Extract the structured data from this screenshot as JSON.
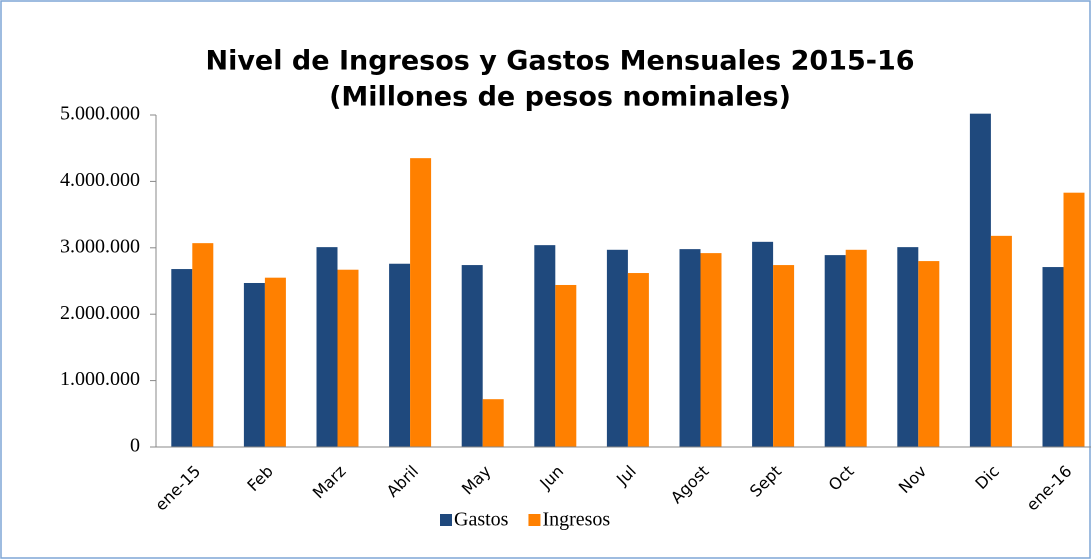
{
  "chart_data": {
    "type": "bar",
    "title": "Nivel de Ingresos y Gastos Mensuales 2015-16",
    "subtitle": "(Millones de pesos nominales)",
    "categories": [
      "ene-15",
      "Feb",
      "Marz",
      "Abril",
      "May",
      "Jun",
      "Jul",
      "Agost",
      "Sept",
      "Oct",
      "Nov",
      "Dic",
      "ene-16"
    ],
    "series": [
      {
        "name": "Gastos",
        "color": "#1f497d",
        "values": [
          2680000,
          2470000,
          3010000,
          2760000,
          2740000,
          3040000,
          2970000,
          2980000,
          3090000,
          2890000,
          3010000,
          5020000,
          2710000
        ]
      },
      {
        "name": "Ingresos",
        "color": "#ff8000",
        "values": [
          3070000,
          2550000,
          2670000,
          4350000,
          720000,
          2440000,
          2620000,
          2920000,
          2740000,
          2970000,
          2800000,
          3180000,
          3830000
        ]
      }
    ],
    "ylim": [
      0,
      5000000
    ],
    "yticks": [
      0,
      {
        "value": 1000000,
        "label": "1.000.000"
      },
      {
        "value": 2000000,
        "label": "2.000.000"
      },
      {
        "value": 3000000,
        "label": "3.000.000"
      },
      {
        "value": 4000000,
        "label": "4.000.000"
      },
      {
        "value": 5000000,
        "label": "5.000.000"
      }
    ],
    "grid": false,
    "legend": "bottom"
  }
}
